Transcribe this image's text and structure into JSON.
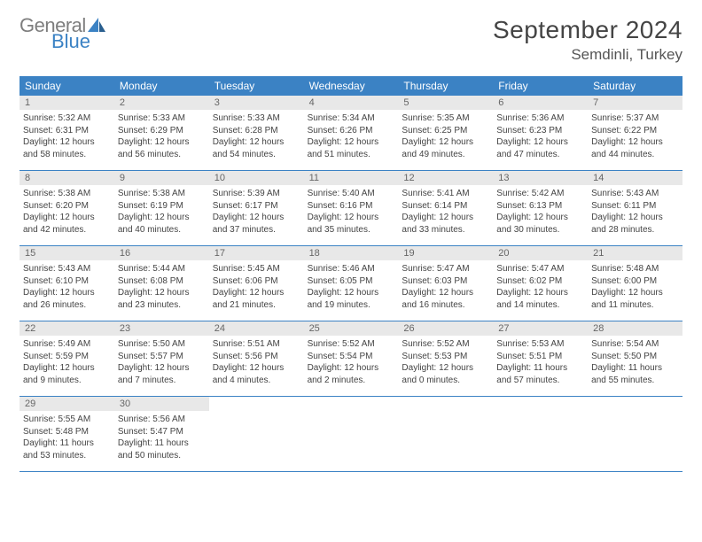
{
  "brand": {
    "part1": "General",
    "part2": "Blue"
  },
  "title": {
    "month_year": "September 2024",
    "location": "Semdinli, Turkey"
  },
  "colors": {
    "header_bg": "#3b82c4",
    "header_text": "#ffffff",
    "daynum_bg": "#e8e8e8",
    "daynum_text": "#666666",
    "body_text": "#444444",
    "divider": "#3b82c4",
    "logo_gray": "#7e7e7e",
    "logo_blue": "#3b82c4"
  },
  "weekdays": [
    "Sunday",
    "Monday",
    "Tuesday",
    "Wednesday",
    "Thursday",
    "Friday",
    "Saturday"
  ],
  "weeks": [
    [
      {
        "n": "1",
        "sunrise": "5:32 AM",
        "sunset": "6:31 PM",
        "dl_h": "12",
        "dl_m": "58"
      },
      {
        "n": "2",
        "sunrise": "5:33 AM",
        "sunset": "6:29 PM",
        "dl_h": "12",
        "dl_m": "56"
      },
      {
        "n": "3",
        "sunrise": "5:33 AM",
        "sunset": "6:28 PM",
        "dl_h": "12",
        "dl_m": "54"
      },
      {
        "n": "4",
        "sunrise": "5:34 AM",
        "sunset": "6:26 PM",
        "dl_h": "12",
        "dl_m": "51"
      },
      {
        "n": "5",
        "sunrise": "5:35 AM",
        "sunset": "6:25 PM",
        "dl_h": "12",
        "dl_m": "49"
      },
      {
        "n": "6",
        "sunrise": "5:36 AM",
        "sunset": "6:23 PM",
        "dl_h": "12",
        "dl_m": "47"
      },
      {
        "n": "7",
        "sunrise": "5:37 AM",
        "sunset": "6:22 PM",
        "dl_h": "12",
        "dl_m": "44"
      }
    ],
    [
      {
        "n": "8",
        "sunrise": "5:38 AM",
        "sunset": "6:20 PM",
        "dl_h": "12",
        "dl_m": "42"
      },
      {
        "n": "9",
        "sunrise": "5:38 AM",
        "sunset": "6:19 PM",
        "dl_h": "12",
        "dl_m": "40"
      },
      {
        "n": "10",
        "sunrise": "5:39 AM",
        "sunset": "6:17 PM",
        "dl_h": "12",
        "dl_m": "37"
      },
      {
        "n": "11",
        "sunrise": "5:40 AM",
        "sunset": "6:16 PM",
        "dl_h": "12",
        "dl_m": "35"
      },
      {
        "n": "12",
        "sunrise": "5:41 AM",
        "sunset": "6:14 PM",
        "dl_h": "12",
        "dl_m": "33"
      },
      {
        "n": "13",
        "sunrise": "5:42 AM",
        "sunset": "6:13 PM",
        "dl_h": "12",
        "dl_m": "30"
      },
      {
        "n": "14",
        "sunrise": "5:43 AM",
        "sunset": "6:11 PM",
        "dl_h": "12",
        "dl_m": "28"
      }
    ],
    [
      {
        "n": "15",
        "sunrise": "5:43 AM",
        "sunset": "6:10 PM",
        "dl_h": "12",
        "dl_m": "26"
      },
      {
        "n": "16",
        "sunrise": "5:44 AM",
        "sunset": "6:08 PM",
        "dl_h": "12",
        "dl_m": "23"
      },
      {
        "n": "17",
        "sunrise": "5:45 AM",
        "sunset": "6:06 PM",
        "dl_h": "12",
        "dl_m": "21"
      },
      {
        "n": "18",
        "sunrise": "5:46 AM",
        "sunset": "6:05 PM",
        "dl_h": "12",
        "dl_m": "19"
      },
      {
        "n": "19",
        "sunrise": "5:47 AM",
        "sunset": "6:03 PM",
        "dl_h": "12",
        "dl_m": "16"
      },
      {
        "n": "20",
        "sunrise": "5:47 AM",
        "sunset": "6:02 PM",
        "dl_h": "12",
        "dl_m": "14"
      },
      {
        "n": "21",
        "sunrise": "5:48 AM",
        "sunset": "6:00 PM",
        "dl_h": "12",
        "dl_m": "11"
      }
    ],
    [
      {
        "n": "22",
        "sunrise": "5:49 AM",
        "sunset": "5:59 PM",
        "dl_h": "12",
        "dl_m": "9"
      },
      {
        "n": "23",
        "sunrise": "5:50 AM",
        "sunset": "5:57 PM",
        "dl_h": "12",
        "dl_m": "7"
      },
      {
        "n": "24",
        "sunrise": "5:51 AM",
        "sunset": "5:56 PM",
        "dl_h": "12",
        "dl_m": "4"
      },
      {
        "n": "25",
        "sunrise": "5:52 AM",
        "sunset": "5:54 PM",
        "dl_h": "12",
        "dl_m": "2"
      },
      {
        "n": "26",
        "sunrise": "5:52 AM",
        "sunset": "5:53 PM",
        "dl_h": "12",
        "dl_m": "0"
      },
      {
        "n": "27",
        "sunrise": "5:53 AM",
        "sunset": "5:51 PM",
        "dl_h": "11",
        "dl_m": "57"
      },
      {
        "n": "28",
        "sunrise": "5:54 AM",
        "sunset": "5:50 PM",
        "dl_h": "11",
        "dl_m": "55"
      }
    ],
    [
      {
        "n": "29",
        "sunrise": "5:55 AM",
        "sunset": "5:48 PM",
        "dl_h": "11",
        "dl_m": "53"
      },
      {
        "n": "30",
        "sunrise": "5:56 AM",
        "sunset": "5:47 PM",
        "dl_h": "11",
        "dl_m": "50"
      },
      null,
      null,
      null,
      null,
      null
    ]
  ]
}
